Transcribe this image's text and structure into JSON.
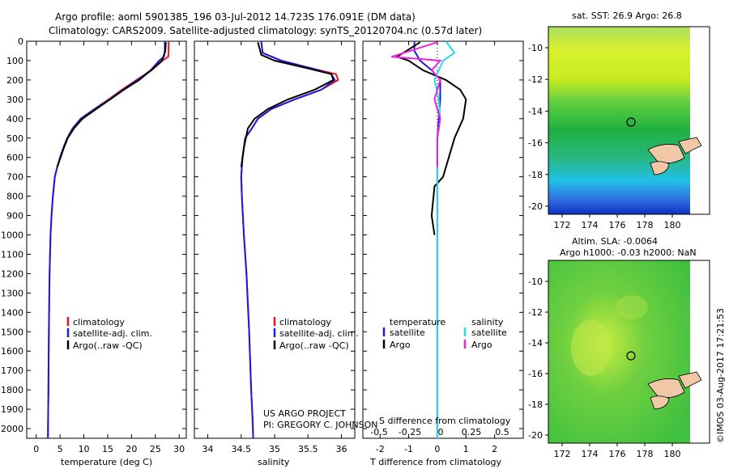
{
  "title": {
    "line1": "Argo profile: aoml 5901385_196 03-Jul-2012 14.723S 176.091E (DM data)",
    "line2": "Climatology: CARS2009. Satellite-adjusted climatology: synTS_20120704.nc (0.57d later)"
  },
  "colors": {
    "climatology": "#e8141b",
    "satellite": "#1a1ae0",
    "argo": "#000000",
    "sat_salinity": "#22dde8",
    "argo_salinity": "#ee22dd"
  },
  "depth_axis": {
    "ticks": [
      0,
      100,
      200,
      300,
      400,
      500,
      600,
      700,
      800,
      900,
      1000,
      1100,
      1200,
      1300,
      1400,
      1500,
      1600,
      1700,
      1800,
      1900,
      2000
    ],
    "range": [
      0,
      2050
    ]
  },
  "temperature_panel": {
    "xlabel": "temperature (deg C)",
    "xticks": [
      0,
      5,
      10,
      15,
      20,
      25,
      30
    ],
    "xlim": [
      -2,
      31.5
    ],
    "legend": {
      "items": [
        "climatology",
        "satellite-adj. clim.",
        "Argo(..raw -QC)"
      ]
    }
  },
  "salinity_panel": {
    "xlabel": "salinity",
    "xticks": [
      "34",
      "34.5",
      "35",
      "35.5",
      "36"
    ],
    "xlim": [
      33.8,
      36.2
    ],
    "legend": {
      "items": [
        "climatology",
        "satellite-adj. clim.",
        "Argo(..raw -QC)"
      ]
    },
    "credit": {
      "line1": "US ARGO PROJECT",
      "line2": "PI: GREGORY C. JOHNSON"
    }
  },
  "difference_panel": {
    "xlabel": "T difference from climatology",
    "top_label": "S difference from climatology",
    "xticks": [
      "-2",
      "-1",
      "0",
      "1",
      "2"
    ],
    "sticks": [
      "-0.5",
      "-0.25",
      "0",
      "0.25",
      "0.5"
    ],
    "xlim": [
      -2.6,
      3.0
    ],
    "legend": {
      "temperature": "temperature",
      "salinity": "salinity",
      "t_items": [
        "satellite",
        "Argo"
      ],
      "s_items": [
        "satellite",
        "Argo"
      ]
    }
  },
  "map_top": {
    "title": "sat. SST: 26.9 Argo: 26.8",
    "xticks": [
      "172",
      "174",
      "176",
      "178",
      "180"
    ],
    "yticks": [
      "-10",
      "-12",
      "-14",
      "-16",
      "-18",
      "-20"
    ]
  },
  "map_bottom": {
    "title1": "Altim. SLA: -0.0064",
    "title2": "Argo h1000: -0.03 h2000: NaN",
    "xticks": [
      "172",
      "174",
      "176",
      "178",
      "180"
    ],
    "yticks": [
      "-10",
      "-12",
      "-14",
      "-16",
      "-18",
      "-20"
    ]
  },
  "stamp": "©IMOS 03-Aug-2017 17:21:53",
  "chart_data": [
    {
      "type": "line",
      "xlabel": "temperature (deg C)",
      "ylim": [
        2050,
        0
      ],
      "series": [
        {
          "name": "climatology",
          "x": [
            27.8,
            27.8,
            27.7,
            26.5,
            24.2,
            21,
            18,
            15.2,
            12.2,
            9.3,
            7.6,
            6.5,
            5.7,
            5,
            4.4,
            3.9,
            3.5,
            3.2,
            3,
            2.8,
            2.7,
            2.6,
            2.55,
            2.5,
            2.45
          ],
          "y": [
            0,
            50,
            80,
            100,
            150,
            200,
            250,
            300,
            350,
            400,
            450,
            500,
            550,
            600,
            650,
            700,
            800,
            900,
            1000,
            1200,
            1400,
            1600,
            1800,
            1900,
            2050
          ]
        },
        {
          "name": "satellite-adj. clim.",
          "x": [
            27,
            27,
            26.8,
            25.8,
            24,
            21.3,
            18.2,
            15.4,
            12.3,
            9.4,
            7.7,
            6.5,
            5.7,
            5,
            4.4,
            3.9,
            3.5,
            3.2,
            3,
            2.8,
            2.7,
            2.6,
            2.55,
            2.5,
            2.45
          ],
          "y": [
            0,
            50,
            80,
            100,
            150,
            200,
            250,
            300,
            350,
            400,
            450,
            500,
            550,
            600,
            650,
            700,
            800,
            900,
            1000,
            1200,
            1400,
            1600,
            1800,
            1900,
            2050
          ]
        },
        {
          "name": "Argo(..raw -QC)",
          "x": [
            27.2,
            27.1,
            26.4,
            24.1,
            21.6,
            18.4,
            15.5,
            12.6,
            9.7,
            7.9,
            6.6,
            5.8,
            5.1,
            4.4
          ],
          "y": [
            5,
            50,
            100,
            150,
            200,
            250,
            300,
            350,
            400,
            450,
            500,
            550,
            600,
            650
          ]
        }
      ]
    },
    {
      "type": "line",
      "xlabel": "salinity",
      "ylim": [
        2050,
        0
      ],
      "series": [
        {
          "name": "climatology",
          "x": [
            34.8,
            34.82,
            35.1,
            35.55,
            35.92,
            35.95,
            35.7,
            35.3,
            34.95,
            34.75,
            34.66,
            34.56,
            34.52,
            34.5,
            34.51,
            34.54,
            34.58,
            34.62,
            34.65,
            34.67,
            34.68
          ],
          "y": [
            0,
            60,
            100,
            140,
            170,
            200,
            250,
            300,
            350,
            400,
            450,
            500,
            600,
            700,
            800,
            1000,
            1200,
            1500,
            1800,
            1950,
            2050
          ]
        },
        {
          "name": "satellite-adj. clim.",
          "x": [
            34.8,
            34.82,
            35.1,
            35.55,
            35.85,
            35.9,
            35.7,
            35.3,
            34.95,
            34.75,
            34.66,
            34.56,
            34.52,
            34.5,
            34.51,
            34.54,
            34.58,
            34.62,
            34.65,
            34.67,
            34.68
          ],
          "y": [
            0,
            60,
            100,
            140,
            170,
            200,
            250,
            300,
            350,
            400,
            450,
            500,
            600,
            700,
            800,
            1000,
            1200,
            1500,
            1800,
            1950,
            2050
          ]
        },
        {
          "name": "Argo(..raw -QC)",
          "x": [
            34.75,
            34.8,
            35.0,
            35.5,
            35.85,
            35.88,
            35.6,
            35.2,
            34.9,
            34.7,
            34.6,
            34.54,
            34.5
          ],
          "y": [
            5,
            70,
            100,
            140,
            170,
            200,
            250,
            300,
            350,
            400,
            450,
            550,
            650
          ]
        }
      ]
    },
    {
      "type": "line",
      "xlabel": "T difference from climatology",
      "ylim": [
        2050,
        0
      ],
      "series": [
        {
          "name": "satellite",
          "x": [
            -0.8,
            -0.8,
            -0.6,
            -0.2,
            0.1,
            0.1,
            0.05,
            0,
            0,
            0,
            0,
            0,
            0,
            0
          ],
          "y": [
            0,
            50,
            100,
            150,
            200,
            300,
            400,
            500,
            600,
            800,
            1000,
            1400,
            1800,
            2050
          ]
        },
        {
          "name": "Argo",
          "x": [
            -0.6,
            -1.4,
            -1,
            -0.5,
            0.3,
            0.8,
            1.0,
            0.9,
            0.6,
            0.4,
            0.3,
            0.2,
            -0.1,
            -0.2,
            -0.1
          ],
          "y": [
            5,
            80,
            100,
            150,
            200,
            250,
            300,
            400,
            500,
            600,
            650,
            700,
            750,
            900,
            1000
          ]
        },
        {
          "name": "satellite (salinity)",
          "x": [
            0.3,
            0.6,
            0.2,
            -0.1,
            0.05,
            0.1,
            0,
            0,
            0,
            0
          ],
          "y": [
            0,
            60,
            100,
            200,
            300,
            400,
            500,
            600,
            800,
            2050
          ]
        },
        {
          "name": "Argo (salinity)",
          "x": [
            0,
            -1.6,
            0.1,
            -0.2,
            0.1,
            -0.1,
            0.1,
            0,
            0
          ],
          "y": [
            5,
            80,
            100,
            150,
            200,
            300,
            400,
            500,
            650
          ]
        }
      ]
    }
  ]
}
